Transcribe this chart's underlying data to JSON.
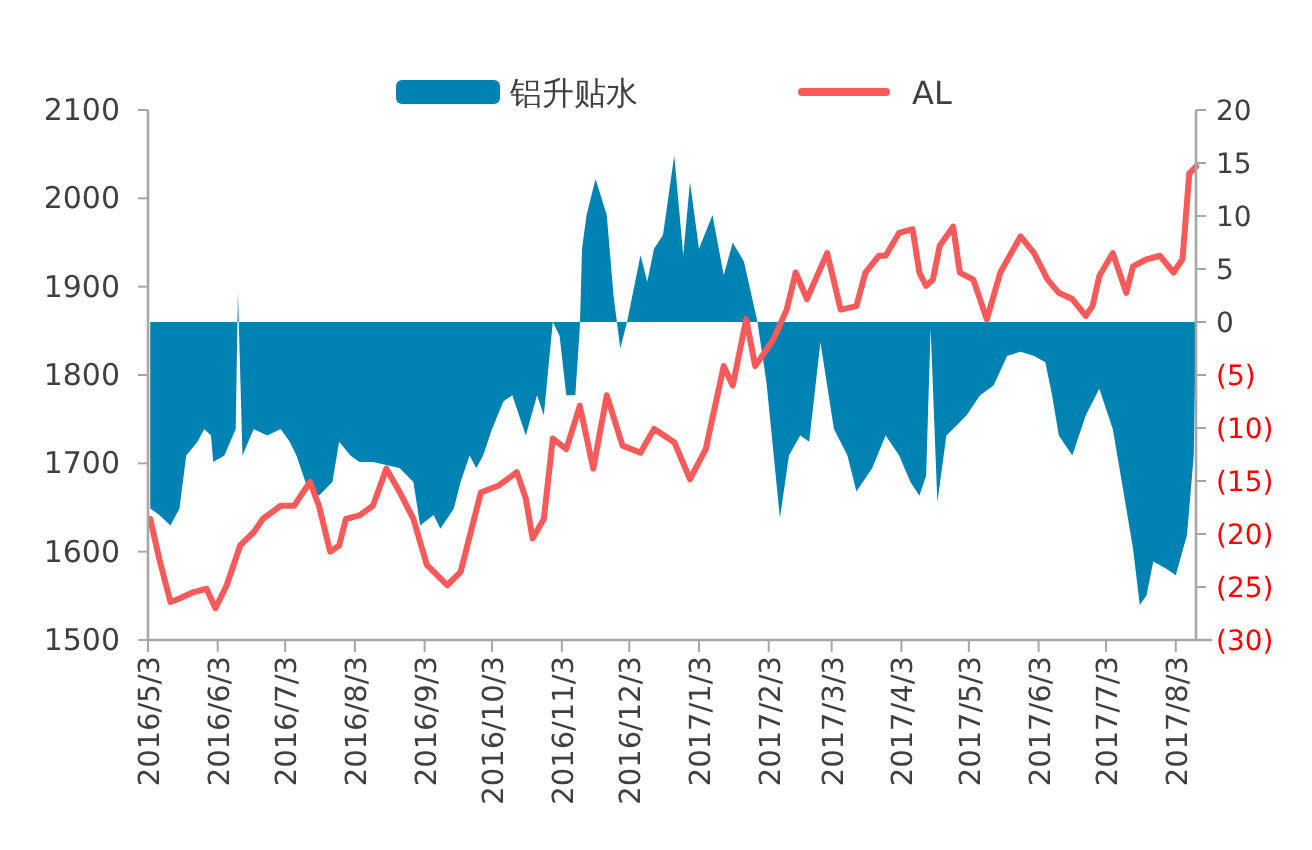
{
  "chart_data": {
    "type": "line",
    "xlim": [
      "2016-05-03",
      "2017-08-12"
    ],
    "xticks": [
      {
        "value": "2016-05-03",
        "label": "2016/5/3"
      },
      {
        "value": "2016-06-03",
        "label": "2016/6/3"
      },
      {
        "value": "2016-07-03",
        "label": "2016/7/3"
      },
      {
        "value": "2016-08-03",
        "label": "2016/8/3"
      },
      {
        "value": "2016-09-03",
        "label": "2016/9/3"
      },
      {
        "value": "2016-10-03",
        "label": "2016/10/3"
      },
      {
        "value": "2016-11-03",
        "label": "2016/11/3"
      },
      {
        "value": "2016-12-03",
        "label": "2016/12/3"
      },
      {
        "value": "2017-01-03",
        "label": "2017/1/3"
      },
      {
        "value": "2017-02-03",
        "label": "2017/2/3"
      },
      {
        "value": "2017-03-03",
        "label": "2017/3/3"
      },
      {
        "value": "2017-04-03",
        "label": "2017/4/3"
      },
      {
        "value": "2017-05-03",
        "label": "2017/5/3"
      },
      {
        "value": "2017-06-03",
        "label": "2017/6/3"
      },
      {
        "value": "2017-07-03",
        "label": "2017/7/3"
      },
      {
        "value": "2017-08-03",
        "label": "2017/8/3"
      }
    ],
    "ylim": [
      1500,
      2100
    ],
    "yticks": [
      1500,
      1600,
      1700,
      1800,
      1900,
      2000,
      2100
    ],
    "y2lim": [
      -30,
      20
    ],
    "y2ticks": [
      {
        "value": -30,
        "label": "(30)"
      },
      {
        "value": -25,
        "label": "(25)"
      },
      {
        "value": -20,
        "label": "(20)"
      },
      {
        "value": -15,
        "label": "(15)"
      },
      {
        "value": -10,
        "label": "(10)"
      },
      {
        "value": -5,
        "label": "(5)"
      },
      0,
      5,
      10,
      15,
      20
    ],
    "legend": "top",
    "grid": false,
    "series": [
      {
        "name": "铝升贴水",
        "type": "area",
        "axis": "y2",
        "color": "#0083b3",
        "x": [
          "2016-05-04",
          "2016-05-08",
          "2016-05-13",
          "2016-05-17",
          "2016-05-20",
          "2016-05-25",
          "2016-05-28",
          "2016-05-31",
          "2016-06-01",
          "2016-06-06",
          "2016-06-11",
          "2016-06-12",
          "2016-06-14",
          "2016-06-19",
          "2016-06-25",
          "2016-07-01",
          "2016-07-05",
          "2016-07-08",
          "2016-07-12",
          "2016-07-18",
          "2016-07-24",
          "2016-07-27",
          "2016-08-01",
          "2016-08-05",
          "2016-08-11",
          "2016-08-17",
          "2016-08-23",
          "2016-08-29",
          "2016-09-01",
          "2016-09-07",
          "2016-09-10",
          "2016-09-16",
          "2016-09-19",
          "2016-09-23",
          "2016-09-26",
          "2016-09-29",
          "2016-10-03",
          "2016-10-08",
          "2016-10-12",
          "2016-10-18",
          "2016-10-23",
          "2016-10-26",
          "2016-10-30",
          "2016-11-02",
          "2016-11-05",
          "2016-11-09",
          "2016-11-11",
          "2016-11-12",
          "2016-11-14",
          "2016-11-18",
          "2016-11-23",
          "2016-11-26",
          "2016-11-29",
          "2016-12-02",
          "2016-12-08",
          "2016-12-11",
          "2016-12-14",
          "2016-12-18",
          "2016-12-23",
          "2016-12-27",
          "2016-12-30",
          "2017-01-03",
          "2017-01-09",
          "2017-01-14",
          "2017-01-18",
          "2017-01-23",
          "2017-01-27",
          "2017-01-29",
          "2017-02-02",
          "2017-02-08",
          "2017-02-12",
          "2017-02-17",
          "2017-02-21",
          "2017-02-26",
          "2017-03-04",
          "2017-03-10",
          "2017-03-14",
          "2017-03-21",
          "2017-03-27",
          "2017-04-02",
          "2017-04-07",
          "2017-04-11",
          "2017-04-14",
          "2017-04-16",
          "2017-04-19",
          "2017-04-23",
          "2017-04-26",
          "2017-05-02",
          "2017-05-08",
          "2017-05-14",
          "2017-05-20",
          "2017-05-26",
          "2017-06-01",
          "2017-06-06",
          "2017-06-09",
          "2017-06-12",
          "2017-06-18",
          "2017-06-24",
          "2017-06-30",
          "2017-07-06",
          "2017-07-12",
          "2017-07-15",
          "2017-07-18",
          "2017-07-21",
          "2017-07-24",
          "2017-07-30",
          "2017-08-03",
          "2017-08-08",
          "2017-08-11",
          "2017-08-12"
        ],
        "values": [
          -17.6,
          -18.2,
          -19.2,
          -17.6,
          -12.6,
          -11.3,
          -10.1,
          -10.7,
          -13.2,
          -12.6,
          -10.1,
          2.8,
          -12.6,
          -10.1,
          -10.7,
          -10.1,
          -11.3,
          -12.6,
          -15.1,
          -16.4,
          -15.1,
          -11.3,
          -12.6,
          -13.2,
          -13.2,
          -13.5,
          -13.8,
          -15.1,
          -19.2,
          -18.2,
          -19.5,
          -17.6,
          -15.1,
          -12.6,
          -13.8,
          -12.6,
          -10.1,
          -7.5,
          -6.9,
          -10.7,
          -6.9,
          -8.8,
          0,
          -1.3,
          -6.9,
          -6.9,
          -0.6,
          6.9,
          10.1,
          13.5,
          10.1,
          2.5,
          -2.5,
          0,
          6.3,
          3.8,
          6.9,
          8.2,
          15.7,
          6.3,
          13.2,
          6.9,
          10.1,
          4.4,
          7.5,
          5.7,
          1.9,
          0,
          -5.7,
          -18.5,
          -12.6,
          -10.7,
          -11.3,
          -1.9,
          -10.1,
          -12.6,
          -16.0,
          -13.8,
          -10.7,
          -12.6,
          -15.1,
          -16.4,
          -14.5,
          -0.6,
          -17.0,
          -10.7,
          -10.1,
          -8.8,
          -6.9,
          -6.0,
          -3.2,
          -2.8,
          -3.2,
          -3.8,
          -6.9,
          -10.7,
          -12.6,
          -8.8,
          -6.3,
          -10.1,
          -17.6,
          -21.4,
          -26.7,
          -25.8,
          -22.6,
          -23.3,
          -23.9,
          -20.1,
          -12.6,
          0
        ]
      },
      {
        "name": "AL",
        "color": "#f85a5a",
        "x": [
          "2016-05-04",
          "2016-05-08",
          "2016-05-13",
          "2016-05-17",
          "2016-05-23",
          "2016-05-29",
          "2016-06-02",
          "2016-06-07",
          "2016-06-13",
          "2016-06-19",
          "2016-06-23",
          "2016-07-01",
          "2016-07-07",
          "2016-07-14",
          "2016-07-18",
          "2016-07-23",
          "2016-07-27",
          "2016-07-30",
          "2016-08-05",
          "2016-08-11",
          "2016-08-17",
          "2016-08-23",
          "2016-08-29",
          "2016-09-04",
          "2016-09-13",
          "2016-09-19",
          "2016-09-22",
          "2016-09-28",
          "2016-10-06",
          "2016-10-14",
          "2016-10-18",
          "2016-10-21",
          "2016-10-26",
          "2016-10-30",
          "2016-11-05",
          "2016-11-11",
          "2016-11-17",
          "2016-11-23",
          "2016-11-30",
          "2016-12-08",
          "2016-12-14",
          "2016-12-23",
          "2016-12-30",
          "2017-01-06",
          "2017-01-14",
          "2017-01-18",
          "2017-01-24",
          "2017-01-28",
          "2017-02-05",
          "2017-02-11",
          "2017-02-15",
          "2017-02-20",
          "2017-03-01",
          "2017-03-07",
          "2017-03-14",
          "2017-03-18",
          "2017-03-24",
          "2017-03-27",
          "2017-04-02",
          "2017-04-08",
          "2017-04-11",
          "2017-04-14",
          "2017-04-17",
          "2017-04-20",
          "2017-04-26",
          "2017-04-29",
          "2017-05-05",
          "2017-05-11",
          "2017-05-17",
          "2017-05-26",
          "2017-06-01",
          "2017-06-07",
          "2017-06-12",
          "2017-06-18",
          "2017-06-24",
          "2017-06-27",
          "2017-06-30",
          "2017-07-06",
          "2017-07-12",
          "2017-07-15",
          "2017-07-21",
          "2017-07-27",
          "2017-08-02",
          "2017-08-06",
          "2017-08-09",
          "2017-08-12"
        ],
        "values": [
          1637,
          1592,
          1543,
          1547,
          1554,
          1558,
          1536,
          1562,
          1607,
          1622,
          1637,
          1652,
          1652,
          1679,
          1652,
          1600,
          1607,
          1637,
          1641,
          1652,
          1694,
          1667,
          1637,
          1585,
          1562,
          1577,
          1607,
          1667,
          1675,
          1690,
          1660,
          1615,
          1637,
          1728,
          1716,
          1765,
          1694,
          1777,
          1720,
          1712,
          1739,
          1724,
          1682,
          1716,
          1810,
          1788,
          1863,
          1810,
          1840,
          1874,
          1916,
          1886,
          1938,
          1874,
          1878,
          1916,
          1935,
          1935,
          1961,
          1965,
          1916,
          1901,
          1908,
          1946,
          1968,
          1916,
          1908,
          1863,
          1916,
          1957,
          1938,
          1908,
          1893,
          1886,
          1867,
          1878,
          1912,
          1938,
          1893,
          1923,
          1931,
          1935,
          1916,
          1931,
          2028,
          2036
        ]
      }
    ]
  }
}
